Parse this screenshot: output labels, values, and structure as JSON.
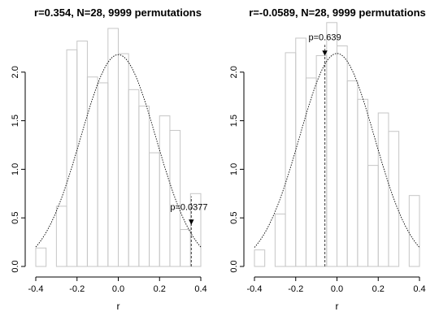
{
  "chart_data": [
    {
      "type": "bar",
      "title": "r=0.354, N=28, 9999 permutations",
      "xlabel": "r",
      "ylabel": "",
      "xlim": [
        -0.4,
        0.4
      ],
      "ylim": [
        0,
        2.5
      ],
      "x_ticks": [
        "-0.4",
        "-0.2",
        "0.0",
        "0.2",
        "0.4"
      ],
      "y_ticks": [
        "0.0",
        "0.5",
        "1.0",
        "1.5",
        "2.0"
      ],
      "bin_width": 0.05,
      "bins_start": [
        -0.4,
        -0.35,
        -0.3,
        -0.25,
        -0.2,
        -0.15,
        -0.1,
        -0.05,
        0.0,
        0.05,
        0.1,
        0.15,
        0.2,
        0.25,
        0.3,
        0.35
      ],
      "values": [
        0.19,
        0.0,
        0.62,
        2.23,
        2.32,
        1.95,
        1.89,
        2.45,
        2.19,
        1.82,
        1.65,
        1.17,
        1.55,
        1.4,
        0.38,
        0.75
      ],
      "normal_curve": {
        "mean": 0.0,
        "sd": 0.183
      },
      "observed_r": 0.354,
      "annotation": {
        "text": "p=0.0377",
        "marker": "▼"
      },
      "grid": false
    },
    {
      "type": "bar",
      "title": "r=-0.0589, N=28, 9999 permutations",
      "xlabel": "r",
      "ylabel": "",
      "xlim": [
        -0.4,
        0.4
      ],
      "ylim": [
        0,
        2.5
      ],
      "x_ticks": [
        "-0.4",
        "-0.2",
        "0.0",
        "0.2",
        "0.4"
      ],
      "y_ticks": [
        "0.0",
        "0.5",
        "1.0",
        "1.5",
        "2.0"
      ],
      "bin_width": 0.05,
      "bins_start": [
        -0.4,
        -0.35,
        -0.3,
        -0.25,
        -0.2,
        -0.15,
        -0.1,
        -0.05,
        0.0,
        0.05,
        0.1,
        0.15,
        0.2,
        0.25,
        0.3,
        0.35
      ],
      "values": [
        0.17,
        0.0,
        0.54,
        2.2,
        2.35,
        1.94,
        2.17,
        2.51,
        2.27,
        1.91,
        1.72,
        1.04,
        1.58,
        1.39,
        0.0,
        0.73
      ],
      "normal_curve": {
        "mean": 0.0,
        "sd": 0.182
      },
      "observed_r": -0.0589,
      "annotation": {
        "text": "p=0.639",
        "marker": "▼"
      },
      "grid": false
    }
  ]
}
